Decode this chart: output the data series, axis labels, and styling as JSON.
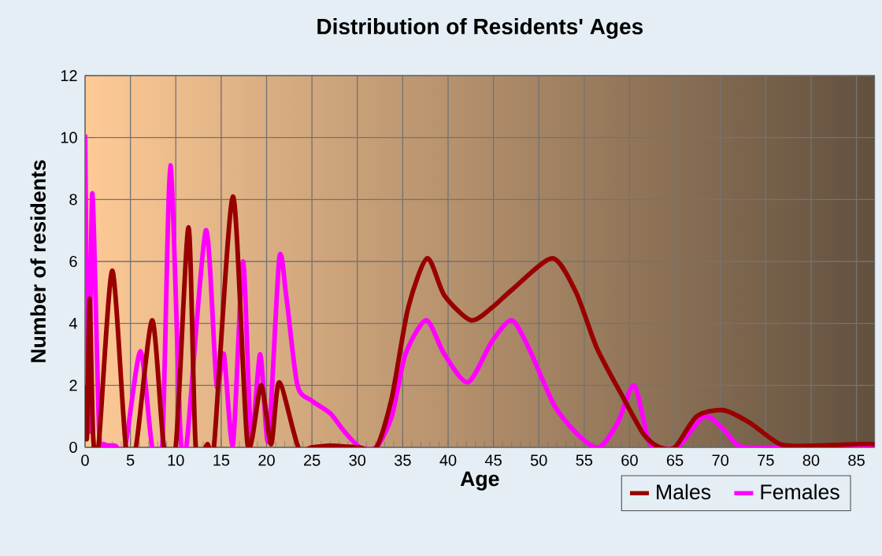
{
  "chart_data": {
    "type": "line",
    "title": "Distribution of Residents' Ages",
    "xlabel": "Age",
    "ylabel": "Number of residents",
    "xlim": [
      0,
      87
    ],
    "ylim": [
      0,
      12
    ],
    "xticks": [
      0,
      5,
      10,
      15,
      20,
      25,
      30,
      35,
      40,
      45,
      50,
      55,
      60,
      65,
      70,
      75,
      80,
      85
    ],
    "yticks": [
      0,
      2,
      4,
      6,
      8,
      10,
      12
    ],
    "grid": true,
    "legend": "bottom right",
    "marker": "none",
    "line_style": "solid",
    "series": [
      {
        "name": "Males",
        "color": "#990000",
        "x": [
          0,
          0.2,
          0.5,
          0.9,
          1.5,
          3.0,
          4.5,
          5.6,
          7.4,
          8.7,
          10,
          11.4,
          12.2,
          13.5,
          14.2,
          16.3,
          17.9,
          19.4,
          20.5,
          21.4,
          23.5,
          25,
          27.1,
          30,
          32.1,
          33.8,
          35.6,
          37.7,
          39.6,
          42.5,
          44.8,
          47.1,
          51.5,
          54.1,
          56.4,
          59.3,
          61.6,
          63.3,
          65,
          67.4,
          70.3,
          73.2,
          76.6,
          80,
          85,
          87
        ],
        "values": [
          2,
          0.3,
          4.8,
          0.3,
          0.1,
          5.7,
          0,
          0,
          4.1,
          0,
          0.05,
          7.1,
          0,
          0.1,
          0,
          8.1,
          0.1,
          2.0,
          0.1,
          2.1,
          0,
          0,
          0.05,
          0,
          0,
          1.6,
          4.5,
          6.1,
          4.9,
          4.1,
          4.5,
          5.1,
          6.1,
          5.0,
          3.2,
          1.6,
          0.4,
          0,
          0,
          1.0,
          1.2,
          0.8,
          0.1,
          0.05,
          0.1,
          0.1
        ]
      },
      {
        "name": "Females",
        "color": "#ff00ff",
        "x": [
          0,
          0.4,
          0.8,
          1.55,
          2.1,
          3.3,
          4.4,
          6.1,
          7.4,
          8.5,
          9.4,
          10.5,
          11.2,
          13.3,
          14.5,
          15.3,
          16.3,
          17.4,
          18.3,
          19.3,
          20.2,
          21.4,
          22.2,
          23.4,
          25,
          27,
          28.6,
          30.3,
          32.1,
          33.8,
          35.3,
          37.6,
          39.6,
          42.2,
          44.8,
          47,
          48.9,
          51.8,
          54.7,
          56.7,
          58.7,
          60.5,
          62.1,
          63.3,
          65.3,
          68.2,
          70.3,
          72.6,
          80,
          87
        ],
        "values": [
          10.1,
          0.5,
          8.2,
          0.5,
          0.1,
          0.05,
          0,
          3.1,
          0,
          0,
          9.1,
          0.5,
          0.1,
          7.0,
          2.0,
          3.0,
          0.1,
          6.0,
          0.3,
          3.0,
          0.2,
          6.1,
          4.8,
          2.0,
          1.5,
          1.1,
          0.5,
          0,
          0,
          1.0,
          3.0,
          4.1,
          3.0,
          2.1,
          3.4,
          4.1,
          3.2,
          1.3,
          0.3,
          0,
          0.8,
          2.0,
          0.2,
          0,
          0,
          1.0,
          0.6,
          0,
          0.05,
          0.05
        ]
      }
    ]
  }
}
